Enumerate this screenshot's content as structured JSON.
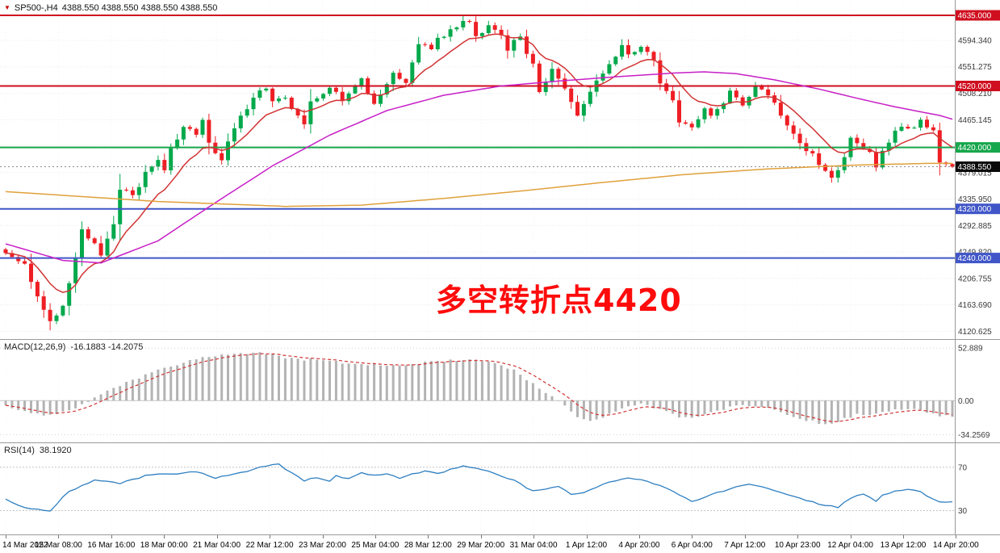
{
  "terminal": {
    "main_title": {
      "marker": "▼",
      "symbol": "SP500-,H4",
      "quotes": "4388.550 4388.550 4388.550 4388.550"
    },
    "macd_title": {
      "label": "MACD(12,26,9)",
      "values": "-16.1883 -14.2075"
    },
    "rsi_title": {
      "label": "RSI(14)",
      "value": "38.1920"
    },
    "annotation": {
      "text": "多空转折点4420",
      "color": "#ff0b0b"
    }
  },
  "colors": {
    "up": "#04a94c",
    "down": "#ee1f24",
    "ma_red": "#d23333",
    "ma_magenta": "#c71fc7",
    "ma_orange": "#e0a03c",
    "macd_hist": "#b3b3b3",
    "macd_signal": "#d23333",
    "rsi_line": "#2e7fc1",
    "grid": "#ececec",
    "panel_border": "#9a9a9a",
    "scale_text": "#3a3a3a",
    "current_price_line": "#8c8c8c",
    "badge_black": "#0a0a0a"
  },
  "chart_data": [
    {
      "id": "price",
      "type": "candlestick",
      "symbol": "SP500-",
      "timeframe": "H4",
      "candle_count": 150,
      "y_range": [
        4108,
        4660
      ],
      "y_ticks": [
        4594.34,
        4551.275,
        4508.21,
        4465.145,
        4422.08,
        4379.015,
        4335.95,
        4292.885,
        4249.82,
        4206.755,
        4163.69,
        4120.625
      ],
      "hlines": [
        {
          "price": 4635.0,
          "label": "4635.000",
          "color": "#cf0e1f"
        },
        {
          "price": 4520.0,
          "label": "4520.000",
          "color": "#cf0e1f"
        },
        {
          "price": 4420.0,
          "label": "4420.000",
          "color": "#17a74c"
        },
        {
          "price": 4320.0,
          "label": "4320.000",
          "color": "#4056c8"
        },
        {
          "price": 4240.0,
          "label": "4240.000",
          "color": "#4056c8"
        }
      ],
      "current_price": {
        "value": 4388.55,
        "label": "4388.550"
      },
      "jitter": 5,
      "close_waypoints": [
        [
          0,
          4248
        ],
        [
          3,
          4232
        ],
        [
          5,
          4178
        ],
        [
          7,
          4140
        ],
        [
          9,
          4158
        ],
        [
          10,
          4200
        ],
        [
          12,
          4285
        ],
        [
          14,
          4262
        ],
        [
          15,
          4243
        ],
        [
          17,
          4292
        ],
        [
          18,
          4352
        ],
        [
          20,
          4340
        ],
        [
          22,
          4376
        ],
        [
          24,
          4395
        ],
        [
          25,
          4380
        ],
        [
          26,
          4420
        ],
        [
          28,
          4455
        ],
        [
          30,
          4442
        ],
        [
          31,
          4462
        ],
        [
          32,
          4428
        ],
        [
          34,
          4396
        ],
        [
          35,
          4430
        ],
        [
          37,
          4470
        ],
        [
          39,
          4500
        ],
        [
          41,
          4516
        ],
        [
          42,
          4492
        ],
        [
          44,
          4506
        ],
        [
          45,
          4482
        ],
        [
          47,
          4462
        ],
        [
          48,
          4490
        ],
        [
          50,
          4506
        ],
        [
          51,
          4516
        ],
        [
          53,
          4500
        ],
        [
          55,
          4520
        ],
        [
          56,
          4532
        ],
        [
          58,
          4486
        ],
        [
          59,
          4506
        ],
        [
          61,
          4540
        ],
        [
          63,
          4526
        ],
        [
          65,
          4590
        ],
        [
          67,
          4576
        ],
        [
          68,
          4596
        ],
        [
          70,
          4610
        ],
        [
          72,
          4630
        ],
        [
          73,
          4624
        ],
        [
          74,
          4600
        ],
        [
          76,
          4616
        ],
        [
          78,
          4604
        ],
        [
          79,
          4580
        ],
        [
          81,
          4600
        ],
        [
          83,
          4554
        ],
        [
          84,
          4510
        ],
        [
          86,
          4546
        ],
        [
          87,
          4530
        ],
        [
          89,
          4494
        ],
        [
          90,
          4474
        ],
        [
          92,
          4512
        ],
        [
          93,
          4532
        ],
        [
          95,
          4556
        ],
        [
          97,
          4586
        ],
        [
          98,
          4570
        ],
        [
          100,
          4580
        ],
        [
          102,
          4564
        ],
        [
          103,
          4520
        ],
        [
          105,
          4494
        ],
        [
          106,
          4464
        ],
        [
          108,
          4450
        ],
        [
          110,
          4482
        ],
        [
          111,
          4470
        ],
        [
          113,
          4496
        ],
        [
          114,
          4512
        ],
        [
          116,
          4490
        ],
        [
          118,
          4522
        ],
        [
          119,
          4514
        ],
        [
          121,
          4490
        ],
        [
          122,
          4470
        ],
        [
          124,
          4444
        ],
        [
          125,
          4430
        ],
        [
          127,
          4408
        ],
        [
          129,
          4384
        ],
        [
          130,
          4368
        ],
        [
          132,
          4402
        ],
        [
          133,
          4440
        ],
        [
          134,
          4424
        ],
        [
          136,
          4408
        ],
        [
          137,
          4384
        ],
        [
          138,
          4412
        ],
        [
          140,
          4446
        ],
        [
          141,
          4456
        ],
        [
          143,
          4450
        ],
        [
          144,
          4462
        ],
        [
          146,
          4444
        ],
        [
          147,
          4398
        ],
        [
          148,
          4388
        ],
        [
          149,
          4388.55
        ]
      ],
      "low_overrides": {
        "7": 4122,
        "15": 4241
      },
      "high_overrides": {
        "72": 4634
      },
      "ma_red_period": 10,
      "ma_magenta_waypoints": [
        [
          0,
          4263
        ],
        [
          9,
          4236
        ],
        [
          15,
          4232
        ],
        [
          24,
          4268
        ],
        [
          33,
          4330
        ],
        [
          42,
          4390
        ],
        [
          51,
          4440
        ],
        [
          60,
          4480
        ],
        [
          69,
          4505
        ],
        [
          78,
          4520
        ],
        [
          87,
          4528
        ],
        [
          96,
          4535
        ],
        [
          105,
          4541
        ],
        [
          110,
          4543
        ],
        [
          115,
          4540
        ],
        [
          121,
          4530
        ],
        [
          128,
          4515
        ],
        [
          134,
          4500
        ],
        [
          140,
          4486
        ],
        [
          147,
          4472
        ],
        [
          149,
          4466
        ]
      ],
      "ma_orange_waypoints": [
        [
          0,
          4348
        ],
        [
          24,
          4332
        ],
        [
          44,
          4324
        ],
        [
          56,
          4326
        ],
        [
          69,
          4337
        ],
        [
          82,
          4350
        ],
        [
          94,
          4363
        ],
        [
          107,
          4376
        ],
        [
          120,
          4385
        ],
        [
          133,
          4391
        ],
        [
          145,
          4394
        ],
        [
          149,
          4394
        ]
      ],
      "x_labels": [
        "14 Mar 2022",
        "15 Mar 08:00",
        "16 Mar 16:00",
        "18 Mar 00:00",
        "21 Mar 04:00",
        "22 Mar 12:00",
        "23 Mar 20:00",
        "25 Mar 04:00",
        "28 Mar 12:00",
        "29 Mar 20:00",
        "31 Mar 04:00",
        "1 Apr 12:00",
        "4 Apr 20:00",
        "6 Apr 04:00",
        "7 Apr 12:00",
        "10 Apr 23:00",
        "12 Apr 04:00",
        "13 Apr 12:00",
        "14 Apr 20:00"
      ]
    },
    {
      "id": "macd",
      "type": "macd",
      "label": "MACD(12,26,9)",
      "macd_value": -16.1883,
      "signal_value": -14.2075,
      "y_range": [
        -42,
        62
      ],
      "ticks": [
        {
          "v": 52.889,
          "label": "52.889"
        },
        {
          "v": 0,
          "label": "0.00"
        },
        {
          "v": -34.2569,
          "label": "-34.2569"
        }
      ],
      "signal_period": 6,
      "jitter": 1.5,
      "waypoints": [
        [
          0,
          -6
        ],
        [
          3,
          -10
        ],
        [
          6,
          -14
        ],
        [
          9,
          -12
        ],
        [
          12,
          -4
        ],
        [
          15,
          6
        ],
        [
          18,
          15
        ],
        [
          21,
          23
        ],
        [
          24,
          30
        ],
        [
          27,
          37
        ],
        [
          30,
          42
        ],
        [
          33,
          45
        ],
        [
          36,
          47
        ],
        [
          39,
          48
        ],
        [
          42,
          46
        ],
        [
          45,
          43
        ],
        [
          48,
          41
        ],
        [
          51,
          40
        ],
        [
          54,
          38
        ],
        [
          57,
          36
        ],
        [
          60,
          35
        ],
        [
          63,
          36
        ],
        [
          66,
          38
        ],
        [
          69,
          40
        ],
        [
          72,
          42
        ],
        [
          75,
          40
        ],
        [
          78,
          36
        ],
        [
          80,
          30
        ],
        [
          82,
          22
        ],
        [
          84,
          12
        ],
        [
          86,
          4
        ],
        [
          88,
          -6
        ],
        [
          90,
          -16
        ],
        [
          92,
          -20
        ],
        [
          94,
          -16
        ],
        [
          96,
          -10
        ],
        [
          98,
          -6
        ],
        [
          100,
          -4
        ],
        [
          102,
          -7
        ],
        [
          104,
          -12
        ],
        [
          106,
          -16
        ],
        [
          108,
          -18
        ],
        [
          110,
          -14
        ],
        [
          112,
          -10
        ],
        [
          114,
          -6
        ],
        [
          116,
          -4
        ],
        [
          118,
          -5
        ],
        [
          120,
          -8
        ],
        [
          122,
          -12
        ],
        [
          124,
          -16
        ],
        [
          126,
          -19
        ],
        [
          128,
          -22
        ],
        [
          130,
          -24
        ],
        [
          132,
          -18
        ],
        [
          134,
          -14
        ],
        [
          136,
          -16
        ],
        [
          138,
          -12
        ],
        [
          140,
          -9
        ],
        [
          142,
          -8
        ],
        [
          144,
          -10
        ],
        [
          146,
          -14
        ],
        [
          148,
          -16
        ],
        [
          149,
          -16.19
        ]
      ]
    },
    {
      "id": "rsi",
      "type": "line",
      "label": "RSI(14)",
      "value": 38.192,
      "y_range": [
        8,
        93
      ],
      "levels": [
        {
          "v": 70,
          "label": "70"
        },
        {
          "v": 30,
          "label": "30"
        }
      ],
      "jitter": 0.8,
      "waypoints": [
        [
          0,
          40
        ],
        [
          3,
          33
        ],
        [
          7,
          30
        ],
        [
          10,
          48
        ],
        [
          14,
          58
        ],
        [
          18,
          55
        ],
        [
          22,
          62
        ],
        [
          26,
          64
        ],
        [
          30,
          66
        ],
        [
          33,
          60
        ],
        [
          37,
          65
        ],
        [
          41,
          71
        ],
        [
          43,
          73
        ],
        [
          45,
          65
        ],
        [
          47,
          58
        ],
        [
          49,
          60
        ],
        [
          51,
          57
        ],
        [
          52,
          62
        ],
        [
          54,
          60
        ],
        [
          56,
          65
        ],
        [
          58,
          62
        ],
        [
          60,
          64
        ],
        [
          62,
          60
        ],
        [
          64,
          64
        ],
        [
          66,
          66
        ],
        [
          68,
          64
        ],
        [
          70,
          68
        ],
        [
          72,
          72
        ],
        [
          73,
          70
        ],
        [
          75,
          68
        ],
        [
          77,
          64
        ],
        [
          79,
          60
        ],
        [
          81,
          55
        ],
        [
          83,
          48
        ],
        [
          85,
          50
        ],
        [
          87,
          52
        ],
        [
          89,
          45
        ],
        [
          91,
          47
        ],
        [
          93,
          52
        ],
        [
          94,
          55
        ],
        [
          96,
          58
        ],
        [
          98,
          60
        ],
        [
          100,
          58
        ],
        [
          102,
          55
        ],
        [
          104,
          50
        ],
        [
          106,
          45
        ],
        [
          108,
          38
        ],
        [
          110,
          42
        ],
        [
          112,
          47
        ],
        [
          114,
          50
        ],
        [
          115,
          52
        ],
        [
          117,
          55
        ],
        [
          119,
          52
        ],
        [
          121,
          48
        ],
        [
          123,
          45
        ],
        [
          125,
          42
        ],
        [
          127,
          38
        ],
        [
          129,
          35
        ],
        [
          131,
          33
        ],
        [
          133,
          42
        ],
        [
          135,
          45
        ],
        [
          137,
          38
        ],
        [
          138,
          44
        ],
        [
          140,
          48
        ],
        [
          142,
          50
        ],
        [
          144,
          47
        ],
        [
          146,
          40
        ],
        [
          148,
          37
        ],
        [
          149,
          38.19
        ]
      ]
    }
  ]
}
